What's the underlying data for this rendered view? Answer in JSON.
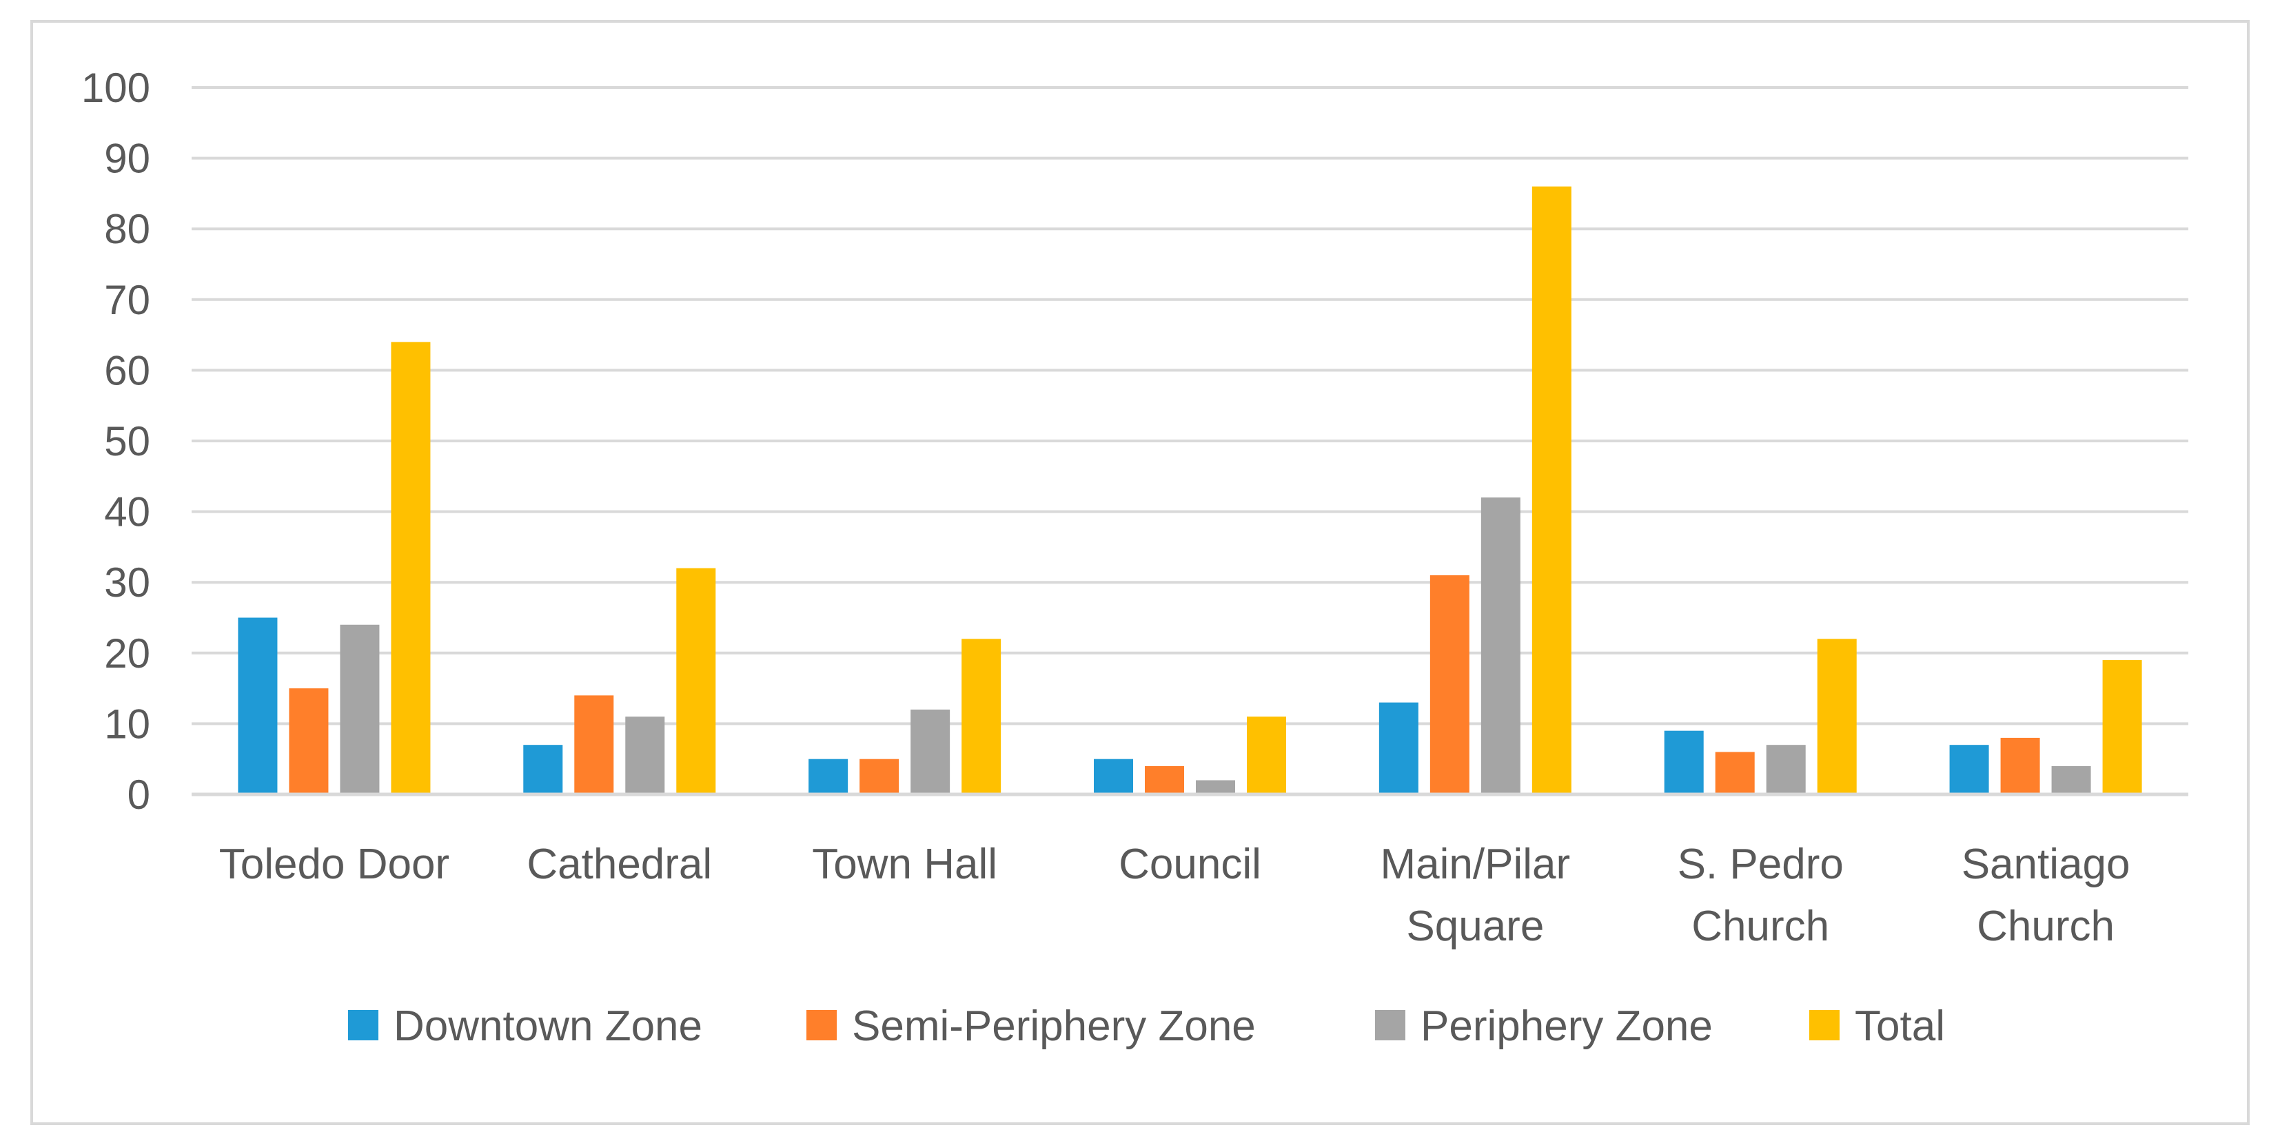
{
  "chart_data": {
    "type": "bar",
    "title": "",
    "xlabel": "",
    "ylabel": "",
    "ylim": [
      0,
      100
    ],
    "yticks": [
      0,
      10,
      20,
      30,
      40,
      50,
      60,
      70,
      80,
      90,
      100
    ],
    "grid": true,
    "legend_position": "bottom",
    "categories": [
      [
        "Toledo Door"
      ],
      [
        "Cathedral"
      ],
      [
        "Town Hall"
      ],
      [
        "Council"
      ],
      [
        "Main/Pilar",
        "Square"
      ],
      [
        "S. Pedro",
        "Church"
      ],
      [
        "Santiago",
        "Church"
      ]
    ],
    "series": [
      {
        "name": "Downtown Zone",
        "color": "#1F9AD6",
        "values": [
          25,
          7,
          5,
          5,
          13,
          9,
          7
        ]
      },
      {
        "name": "Semi-Periphery Zone",
        "color": "#FF7F2A",
        "values": [
          15,
          14,
          5,
          4,
          31,
          6,
          8
        ]
      },
      {
        "name": "Periphery Zone",
        "color": "#A5A5A5",
        "values": [
          24,
          11,
          12,
          2,
          42,
          7,
          4
        ]
      },
      {
        "name": "Total",
        "color": "#FFC000",
        "values": [
          64,
          32,
          22,
          11,
          86,
          22,
          19
        ]
      }
    ]
  },
  "style": {
    "grid_color": "#D9D9D9",
    "border_color": "#D9D9D9",
    "text_color": "#595959"
  }
}
